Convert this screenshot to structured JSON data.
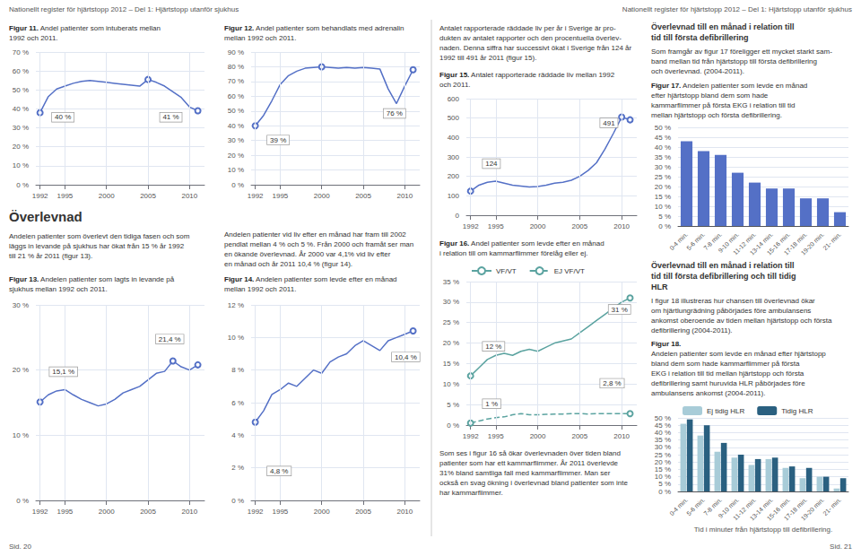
{
  "header": [
    "Nationellt register för hjärtstopp 2012 – Del 1: Hjärtstopp utanför sjukhus",
    "Nationellt register för hjärtstopp 2012 – Del 1: Hjärtstopp utanför sjukhus"
  ],
  "footer": [
    "Sid. 20",
    "Sid. 21"
  ],
  "headings": [
    "Överlevnad",
    "Överlevnad till en månad i relation till\ntid till första defibrillering",
    "Överlevnad till en månad i relation till\ntid till första defibrillering och till tidig\nHLR"
  ],
  "paragraphs": [
    "Andelen patienter som överlevt den tidiga fasen och som\nläggs in levande på sjukhus har ökat från 15 % år 1992\ntill 21 % år 2011 (figur 13).",
    "Andelen patienter vid liv efter en månad har fram till 2002\npendlat mellan 4 % och 5 %. Från 2000 och framåt ser man\nen ökande överlevnad. År 2000 var 4,1% vid liv efter\nen månad och år 2011 10,4 % (figur 14).",
    "Antalet rapporterade räddade liv per år i Sverige är pro-\ndukten av antalet rapporter och den procentuella överlev-\nnaden. Denna siffra har successivt ökat i Sverige från 124 år\n1992 till 491 år 2011 (figur 15).",
    "Som framgår av figur 17 föreligger ett mycket starkt sam-\nband mellan tid från hjärtstopp till första defibrillering\noch överlevnad. (2004-2011).",
    "Som ses i figur 16 så ökar överlevnaden över tiden bland\npatienter som har ett kammarflimmer. År 2011 överlevde\n31% bland samtliga fall med kammarflimmer. Man ser\nockså en svag ökning i överlevnad bland patienter som inte\nhar kammarflimmer.",
    "I figur 18 illustreras hur chansen till överlevnad ökar\nom hjärtlungrädning påbörjades före ambulansens\nankomst oberoende av tiden mellan hjärtstopp och första\ndefibrillering (2004-2011)."
  ],
  "chart_data": [
    {
      "type": "line",
      "title": "Figur 11. Andel patienter som intuberats mellan\n1992 och 2011.",
      "x": [
        1992,
        1993,
        1994,
        1995,
        1996,
        1997,
        1998,
        1999,
        2000,
        2001,
        2002,
        2003,
        2004,
        2005,
        2006,
        2007,
        2008,
        2009,
        2010,
        2011
      ],
      "values": [
        38.0,
        46.5,
        50.5,
        52.0,
        53.5,
        54.5,
        55.0,
        54.5,
        54.0,
        53.5,
        53.0,
        52.5,
        52.0,
        55.5,
        54.0,
        52.0,
        49.0,
        46.0,
        41.0,
        39.0
      ],
      "xlim": [
        1991.5,
        2011.8
      ],
      "xticks": [
        1992,
        1995,
        2000,
        2005,
        2010
      ],
      "ylim": [
        0,
        70
      ],
      "yticks": [
        {
          "value": 0,
          "label": "0 %"
        },
        {
          "value": 10,
          "label": "10 %"
        },
        {
          "value": 20,
          "label": "20 %"
        },
        {
          "value": 30,
          "label": "30 %"
        },
        {
          "value": 40,
          "label": "40 %"
        },
        {
          "value": 50,
          "label": "50 %"
        },
        {
          "value": 60,
          "label": "60 %"
        },
        {
          "value": 70,
          "label": "70 %"
        }
      ],
      "grid": true,
      "annotations": [
        {
          "text": "40 %",
          "x": 1993.5,
          "y": 33
        },
        {
          "text": "41 %",
          "x": 2006.5,
          "y": 33
        }
      ]
    },
    {
      "type": "line",
      "title": "Figur 12. Andel patienter som behandlats med adrenalin\nmellan 1992 och 2011.",
      "x": [
        1992,
        1993,
        1994,
        1995,
        1996,
        1997,
        1998,
        1999,
        2000,
        2001,
        2002,
        2003,
        2004,
        2005,
        2006,
        2007,
        2008,
        2009,
        2010,
        2011
      ],
      "values": [
        40.0,
        47.0,
        57.0,
        68.0,
        74.0,
        77.0,
        79.0,
        79.5,
        80.0,
        79.5,
        79.0,
        79.5,
        79.0,
        79.5,
        79.0,
        78.5,
        65.0,
        55.0,
        67.0,
        78.0
      ],
      "xlim": [
        1991.5,
        2011.8
      ],
      "xticks": [
        1992,
        1995,
        2000,
        2005,
        2010
      ],
      "ylim": [
        0,
        90
      ],
      "yticks": [
        {
          "value": 0,
          "label": "0 %"
        },
        {
          "value": 10,
          "label": "10 %"
        },
        {
          "value": 20,
          "label": "20 %"
        },
        {
          "value": 30,
          "label": "30 %"
        },
        {
          "value": 40,
          "label": "40 %"
        },
        {
          "value": 50,
          "label": "50 %"
        },
        {
          "value": 60,
          "label": "60 %"
        },
        {
          "value": 70,
          "label": "70 %"
        },
        {
          "value": 80,
          "label": "80 %"
        },
        {
          "value": 90,
          "label": "90 %"
        }
      ],
      "grid": true,
      "annotations": [
        {
          "text": "39 %",
          "x": 1993.5,
          "y": 27
        },
        {
          "text": "76 %",
          "x": 2007.5,
          "y": 45
        }
      ]
    },
    {
      "type": "line",
      "title": "Figur 13. Andelen patienter som lagts in levande på\nsjukhus mellan 1992 och 2011.",
      "x": [
        1992,
        1993,
        1994,
        1995,
        1996,
        1997,
        1998,
        1999,
        2000,
        2001,
        2002,
        2003,
        2004,
        2005,
        2006,
        2007,
        2008,
        2009,
        2010,
        2011
      ],
      "values": [
        15.1,
        16.2,
        16.8,
        17.0,
        16.2,
        15.5,
        15.0,
        14.5,
        14.8,
        15.5,
        16.5,
        17.0,
        17.5,
        18.5,
        19.5,
        19.8,
        21.4,
        20.5,
        20.0,
        20.8
      ],
      "xlim": [
        1991.5,
        2011.8
      ],
      "xticks": [
        1992,
        1995,
        2000,
        2005,
        2010
      ],
      "ylim": [
        0,
        30
      ],
      "yticks": [
        {
          "value": 0,
          "label": "0 %"
        },
        {
          "value": 10,
          "label": "10 %"
        },
        {
          "value": 20,
          "label": "20 %"
        },
        {
          "value": 30,
          "label": "30 %"
        }
      ],
      "grid": true,
      "annotations": [
        {
          "text": "15,1 %",
          "x": 1993.2,
          "y": 19
        },
        {
          "text": "21,4 %",
          "x": 2006.0,
          "y": 24
        }
      ]
    },
    {
      "type": "line",
      "title": "Figur 14. Andelen patienter som levde efter en månad\nmellan 1992 och 2011.",
      "x": [
        1992,
        1993,
        1994,
        1995,
        1996,
        1997,
        1998,
        1999,
        2000,
        2001,
        2002,
        2003,
        2004,
        2005,
        2006,
        2007,
        2008,
        2009,
        2010,
        2011
      ],
      "values": [
        4.8,
        5.5,
        6.5,
        6.8,
        7.2,
        7.0,
        7.5,
        8.0,
        7.8,
        8.5,
        8.8,
        9.0,
        9.5,
        9.8,
        9.5,
        9.2,
        9.8,
        10.0,
        10.2,
        10.4
      ],
      "xlim": [
        1991.5,
        2011.8
      ],
      "xticks": [
        1992,
        1995,
        2000,
        2005,
        2010
      ],
      "ylim": [
        0,
        12
      ],
      "yticks": [
        {
          "value": 0,
          "label": "0 %"
        },
        {
          "value": 2,
          "label": "2 %"
        },
        {
          "value": 4,
          "label": "4 %"
        },
        {
          "value": 6,
          "label": "6 %"
        },
        {
          "value": 8,
          "label": "8 %"
        },
        {
          "value": 10,
          "label": "10 %"
        },
        {
          "value": 12,
          "label": "12 %"
        }
      ],
      "grid": true,
      "annotations": [
        {
          "text": "4,8 %",
          "x": 1993.5,
          "y": 1.5
        },
        {
          "text": "10,4 %",
          "x": 2008.5,
          "y": 8.5
        }
      ]
    },
    {
      "type": "line",
      "title": "Figur 15. Antalet rapporterade räddade liv mellan 1992\noch 2011.",
      "x": [
        1992,
        1993,
        1994,
        1995,
        1996,
        1997,
        1998,
        1999,
        2000,
        2001,
        2002,
        2003,
        2004,
        2005,
        2006,
        2007,
        2008,
        2009,
        2010,
        2011
      ],
      "values": [
        124,
        155,
        170,
        175,
        165,
        155,
        150,
        145,
        148,
        155,
        165,
        170,
        180,
        200,
        230,
        270,
        340,
        420,
        505,
        491
      ],
      "xlim": [
        1991.5,
        2011.8
      ],
      "xticks": [
        1992,
        1995,
        2000,
        2005,
        2010
      ],
      "ylim": [
        0,
        600
      ],
      "yticks": [
        0,
        100,
        200,
        300,
        400,
        500,
        600
      ],
      "grid": true,
      "annotations": [
        {
          "text": "124",
          "x": 1993.5,
          "y": 240
        },
        {
          "text": "491",
          "x": 2007.5,
          "y": 450
        }
      ]
    },
    {
      "type": "line",
      "title": "Figur 16. Andel patienter som levde efter en månad\ni relation till om kammarflimmer förelåg eller ej.",
      "x": [
        1992,
        1993,
        1994,
        1995,
        1996,
        1997,
        1998,
        1999,
        2000,
        2001,
        2002,
        2003,
        2004,
        2005,
        2006,
        2007,
        2008,
        2009,
        2010,
        2011
      ],
      "series": [
        {
          "name": "VF/VT",
          "color": "#5ba3a0",
          "line_style": "solid",
          "values": [
            12.0,
            14.0,
            16.0,
            17.0,
            17.5,
            17.0,
            18.0,
            18.5,
            18.0,
            19.0,
            20.0,
            20.5,
            21.0,
            22.5,
            24.0,
            25.5,
            27.0,
            28.5,
            30.0,
            31.0
          ]
        },
        {
          "name": "EJ VF/VT",
          "color": "#5ba3a0",
          "line_style": "dashed",
          "values": [
            0.5,
            1.0,
            1.5,
            1.8,
            2.0,
            2.5,
            2.8,
            2.5,
            2.5,
            2.6,
            2.7,
            2.7,
            2.8,
            2.8,
            2.7,
            2.8,
            2.8,
            2.8,
            2.8,
            2.8
          ]
        }
      ],
      "xlim": [
        1991.5,
        2011.8
      ],
      "xticks": [
        1992,
        1995,
        2000,
        2005,
        2010
      ],
      "ylim": [
        0,
        35
      ],
      "yticks": [
        {
          "value": 0,
          "label": "0 %"
        },
        {
          "value": 5,
          "label": "5 %"
        },
        {
          "value": 10,
          "label": "10 %"
        },
        {
          "value": 15,
          "label": "15 %"
        },
        {
          "value": 20,
          "label": "20 %"
        },
        {
          "value": 25,
          "label": "25 %"
        },
        {
          "value": 30,
          "label": "30 %"
        },
        {
          "value": 35,
          "label": "35 %"
        }
      ],
      "grid": true,
      "legend": "upper left",
      "annotations": [
        {
          "text": "12 %",
          "x": 1993.5,
          "y": 18
        },
        {
          "text": "1 %",
          "x": 1993.5,
          "y": 4
        },
        {
          "text": "31 %",
          "x": 2008.5,
          "y": 27
        },
        {
          "text": "2,8 %",
          "x": 2007.5,
          "y": 9
        }
      ]
    },
    {
      "type": "bar",
      "title": "Figur 17. Andelen patienter som levde en månad\nefter hjärtstopp bland dem som hade\nkammarflimmer på första EKG i relation till tid\nmellan hjärtstopp och första defibrillering.",
      "categories": [
        "0-4 min.",
        "5-6 min.",
        "7-8 min.",
        "9-10 min.",
        "11-12 min.",
        "13-14 min.",
        "15-16 min.",
        "17-18 min.",
        "19-20 min.",
        "21- min."
      ],
      "values": [
        43,
        38,
        36,
        27,
        22,
        19,
        19,
        14,
        14,
        7
      ],
      "ylim": [
        0,
        50
      ],
      "yticks": [
        {
          "value": 0,
          "label": "0 %"
        },
        {
          "value": 5,
          "label": "5 %"
        },
        {
          "value": 10,
          "label": "10 %"
        },
        {
          "value": 15,
          "label": "15 %"
        },
        {
          "value": 20,
          "label": "20 %"
        },
        {
          "value": 25,
          "label": "25 %"
        },
        {
          "value": 30,
          "label": "30 %"
        },
        {
          "value": 35,
          "label": "35 %"
        },
        {
          "value": 40,
          "label": "40 %"
        },
        {
          "value": 45,
          "label": "45 %"
        },
        {
          "value": 50,
          "label": "50 %"
        }
      ],
      "grid": true
    },
    {
      "type": "bar",
      "title": "Figur 18.\nAndelen patienter som levde en månad efter hjärtstopp\nbland dem som hade kammarflimmer på första\nEKG i relation till tid mellan hjärtstopp och första\ndefibrillering samt huruvida HLR påbörjades före\nambulansens ankomst (2004-2011).",
      "xlabel": "Tid i minuter från hjärtstopp till defibrillering.",
      "categories": [
        "0-4 min.",
        "5-6 min.",
        "7-8 min.",
        "9-10 min.",
        "11-12 min.",
        "13-14 min.",
        "15-16 min.",
        "17-18 min.",
        "19-20 min.",
        "21- min."
      ],
      "series": [
        {
          "name": "Ej tidig HLR",
          "color": "#a8ccd8",
          "values": [
            46,
            38,
            27,
            23,
            18,
            22,
            16,
            9,
            10,
            2
          ]
        },
        {
          "name": "Tidig HLR",
          "color": "#2a6080",
          "values": [
            49,
            45,
            33,
            25,
            22,
            23,
            17,
            16,
            10,
            9
          ]
        }
      ],
      "ylim": [
        0,
        50
      ],
      "yticks": [
        {
          "value": 0,
          "label": "0 %"
        },
        {
          "value": 5,
          "label": "5 %"
        },
        {
          "value": 10,
          "label": "10 %"
        },
        {
          "value": 15,
          "label": "15 %"
        },
        {
          "value": 20,
          "label": "20 %"
        },
        {
          "value": 25,
          "label": "25 %"
        },
        {
          "value": 30,
          "label": "30 %"
        },
        {
          "value": 35,
          "label": "35 %"
        },
        {
          "value": 40,
          "label": "40 %"
        },
        {
          "value": 45,
          "label": "45 %"
        },
        {
          "value": 50,
          "label": "50 %"
        }
      ],
      "grid": true,
      "legend": "upper left"
    }
  ]
}
